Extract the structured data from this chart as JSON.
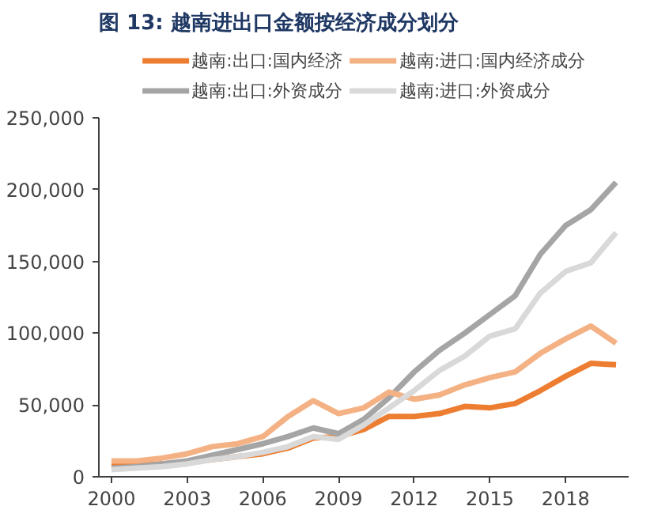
{
  "chart_data": {
    "type": "line",
    "title": "图 13: 越南进出口金额按经济成分划分",
    "x": [
      2000,
      2001,
      2002,
      2003,
      2004,
      2005,
      2006,
      2007,
      2008,
      2009,
      2010,
      2011,
      2012,
      2013,
      2014,
      2015,
      2016,
      2017,
      2018,
      2019,
      2020
    ],
    "series": [
      {
        "name": "越南:出口:国内经济",
        "color": "#ed7d31",
        "values": [
          8000,
          8000,
          9000,
          10000,
          12000,
          14000,
          16000,
          20000,
          27000,
          28000,
          33000,
          42000,
          42000,
          44000,
          49000,
          48000,
          51000,
          60000,
          70000,
          79000,
          78000
        ]
      },
      {
        "name": "越南:出口:外资成分",
        "color": "#a5a5a5",
        "values": [
          6000,
          7000,
          9000,
          11000,
          15000,
          19000,
          23000,
          28000,
          34000,
          30000,
          40000,
          55000,
          73000,
          88000,
          100000,
          113000,
          126000,
          155000,
          175000,
          186000,
          205000
        ]
      },
      {
        "name": "越南:进口:国内经济成分",
        "color": "#f4b183",
        "values": [
          11000,
          11000,
          13000,
          16000,
          21000,
          23000,
          28000,
          42000,
          53000,
          44000,
          48000,
          59000,
          54000,
          57000,
          64000,
          69000,
          73000,
          86000,
          96000,
          105000,
          93000
        ]
      },
      {
        "name": "越南:进口:外资成分",
        "color": "#d9d9d9",
        "values": [
          5000,
          6000,
          7000,
          9000,
          12000,
          14000,
          17000,
          21000,
          28000,
          26000,
          36000,
          48000,
          60000,
          74000,
          84000,
          98000,
          103000,
          128000,
          143000,
          149000,
          170000
        ]
      }
    ],
    "xlim": [
      1999.5,
      2020.5
    ],
    "xticks": [
      2000,
      2003,
      2006,
      2009,
      2012,
      2015,
      2018
    ],
    "ylim": [
      0,
      250000
    ],
    "yticks": [
      0,
      {
        "value": 50000,
        "label": "50,000"
      },
      {
        "value": 100000,
        "label": "100,000"
      },
      {
        "value": 150000,
        "label": "150,000"
      },
      {
        "value": 200000,
        "label": "200,000"
      },
      {
        "value": 250000,
        "label": "250,000"
      }
    ],
    "grid": false,
    "legend": "top",
    "marker": "none",
    "line_style": "solid"
  }
}
